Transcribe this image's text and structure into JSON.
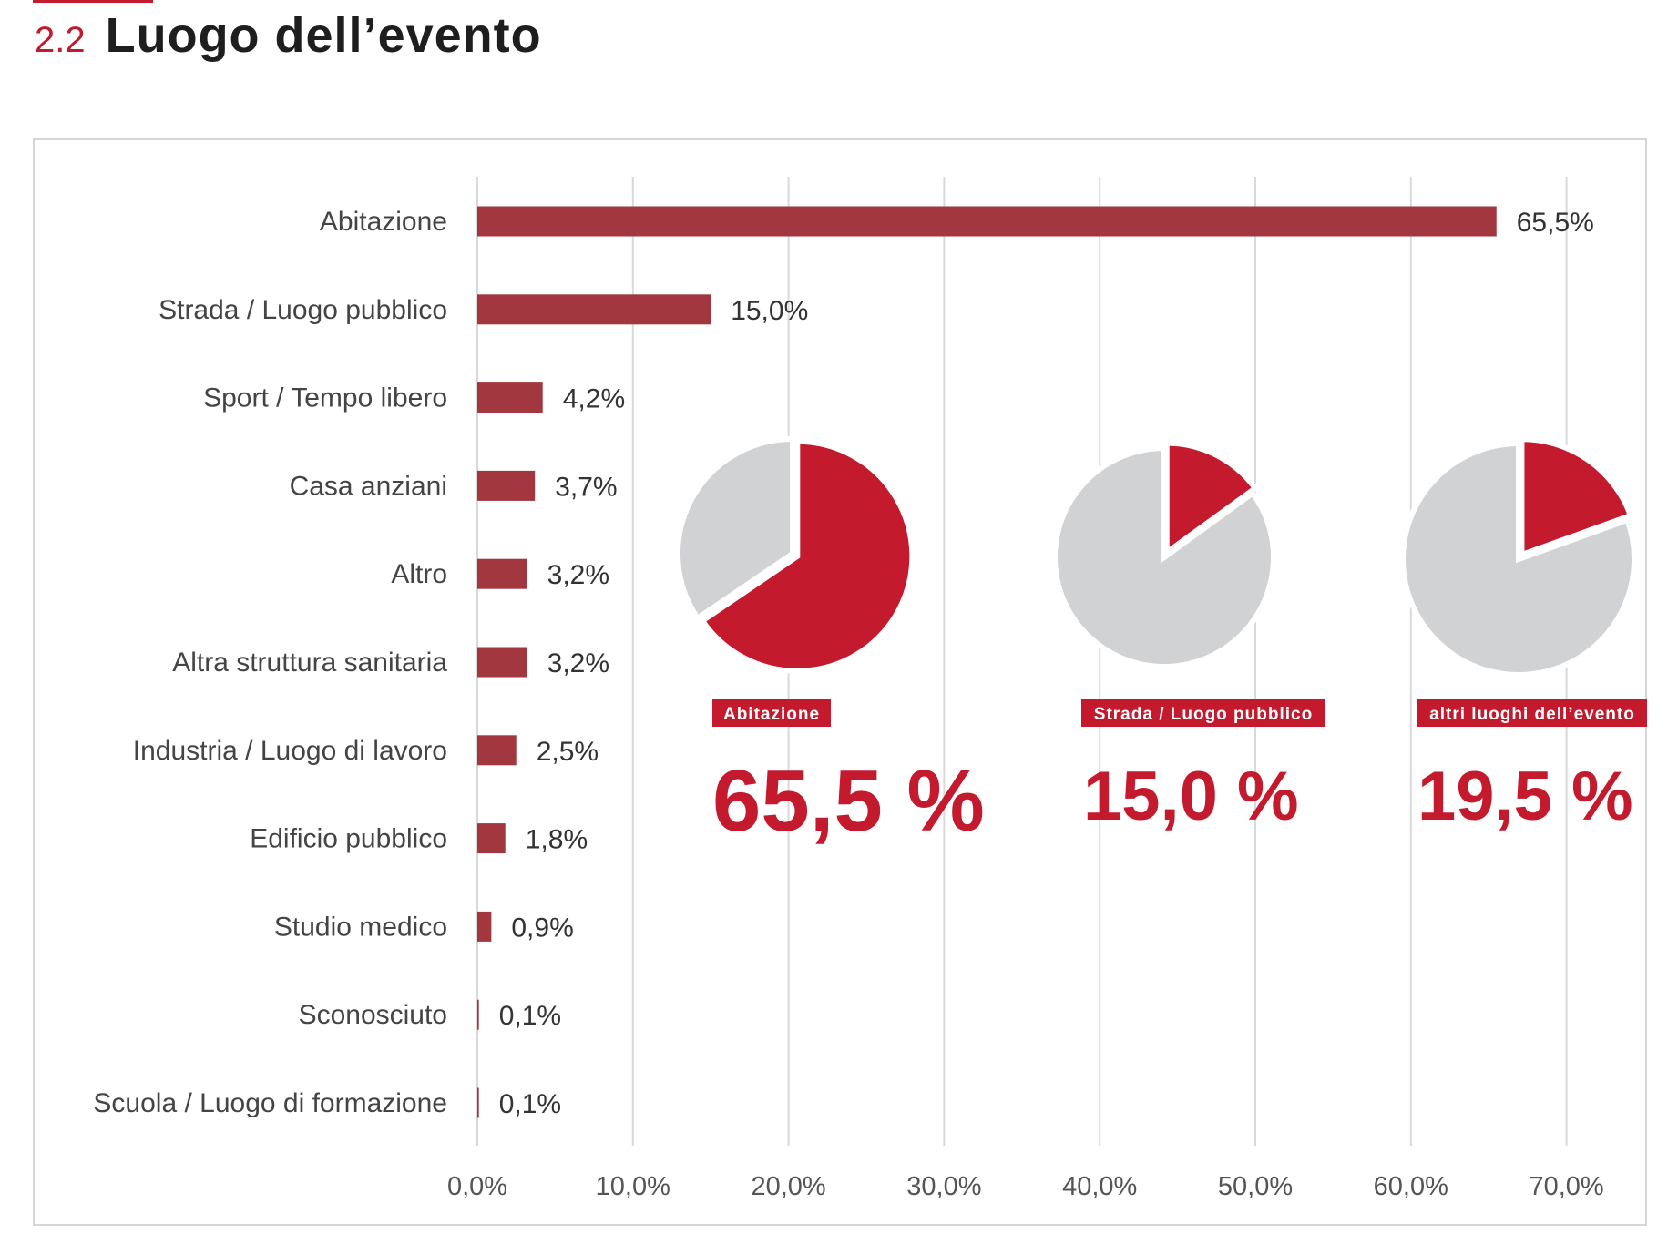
{
  "header": {
    "section_number": "2.2",
    "title": "Luogo dell’evento"
  },
  "colors": {
    "accent": "#c41a2e",
    "bar": "#a3373f",
    "pie_rest": "#d1d2d4",
    "grid": "#d9d9d9",
    "frame": "#d6d6d6"
  },
  "chart_data": [
    {
      "type": "bar",
      "orientation": "horizontal",
      "categories": [
        "Abitazione",
        "Strada / Luogo pubblico",
        "Sport / Tempo libero",
        "Casa anziani",
        "Altro",
        "Altra struttura sanitaria",
        "Industria / Luogo di lavoro",
        "Edificio pubblico",
        "Studio medico",
        "Sconosciuto",
        "Scuola / Luogo di formazione"
      ],
      "values": [
        65.5,
        15.0,
        4.2,
        3.7,
        3.2,
        3.2,
        2.5,
        1.8,
        0.9,
        0.1,
        0.1
      ],
      "value_labels": [
        "65,5%",
        "15,0%",
        "4,2%",
        "3,7%",
        "3,2%",
        "3,2%",
        "2,5%",
        "1,8%",
        "0,9%",
        "0,1%",
        "0,1%"
      ],
      "xlim": [
        0,
        70
      ],
      "xticks": [
        "0,0%",
        "10,0%",
        "20,0%",
        "30,0%",
        "40,0%",
        "50,0%",
        "60,0%",
        "70,0%"
      ],
      "grid": true,
      "xlabel": "",
      "ylabel": ""
    },
    {
      "type": "pie",
      "label": "Abitazione",
      "value": 65.5,
      "value_text": "65,5 %"
    },
    {
      "type": "pie",
      "label": "Strada / Luogo pubblico",
      "value": 15.0,
      "value_text": "15,0 %"
    },
    {
      "type": "pie",
      "label": "altri luoghi dell’evento",
      "value": 19.5,
      "value_text": "19,5 %"
    }
  ]
}
